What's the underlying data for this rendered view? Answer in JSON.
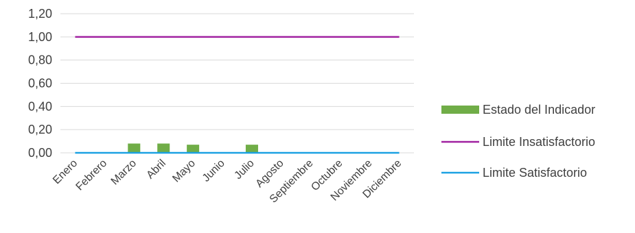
{
  "chart_data": {
    "type": "bar",
    "categories": [
      "Enero",
      "Febrero",
      "Marzo",
      "Abril",
      "Mayo",
      "Junio",
      "Julio",
      "Agosto",
      "Septiembre",
      "Octubre",
      "Noviembre",
      "Diciembre"
    ],
    "series": [
      {
        "name": "Estado del Indicador",
        "type": "bar",
        "color": "#70AD47",
        "values": [
          0,
          0,
          0.08,
          0.08,
          0.07,
          0,
          0.07,
          0,
          0,
          0,
          0,
          0
        ]
      },
      {
        "name": "Limite Insatisfactorio",
        "type": "line",
        "color": "#A020A0",
        "values": [
          1,
          1,
          1,
          1,
          1,
          1,
          1,
          1,
          1,
          1,
          1,
          1
        ]
      },
      {
        "name": "Limite Satisfactorio",
        "type": "line",
        "color": "#1BA1E2",
        "values": [
          0,
          0,
          0,
          0,
          0,
          0,
          0,
          0,
          0,
          0,
          0,
          0
        ]
      }
    ],
    "yticks": [
      "0,00",
      "0,20",
      "0,40",
      "0,60",
      "0,80",
      "1,00",
      "1,20"
    ],
    "ylim": [
      0,
      1.2
    ],
    "grid": true,
    "legend_position": "right"
  }
}
